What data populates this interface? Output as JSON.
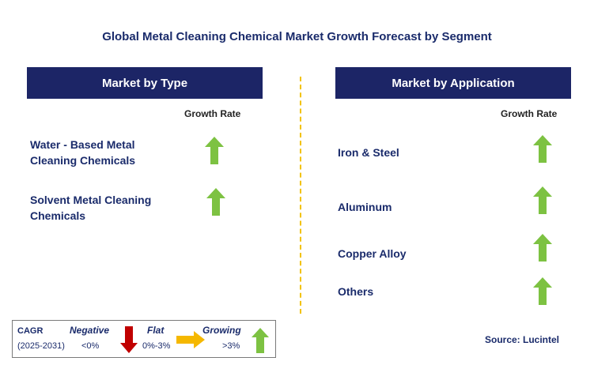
{
  "title": "Global Metal Cleaning Chemical Market Growth Forecast by Segment",
  "left_panel": {
    "header": "Market by Type",
    "growth_rate_label": "Growth Rate",
    "items": [
      {
        "line1": "Water - Based Metal",
        "line2": "Cleaning Chemicals",
        "trend": "growing"
      },
      {
        "line1": "Solvent Metal Cleaning",
        "line2": "Chemicals",
        "trend": "growing"
      }
    ]
  },
  "right_panel": {
    "header": "Market by Application",
    "growth_rate_label": "Growth Rate",
    "items": [
      {
        "label": "Iron & Steel",
        "trend": "growing"
      },
      {
        "label": "Aluminum",
        "trend": "growing"
      },
      {
        "label": "Copper Alloy",
        "trend": "growing"
      },
      {
        "label": "Others",
        "trend": "growing"
      }
    ]
  },
  "legend": {
    "cagr_label": "CAGR",
    "period": "(2025-2031)",
    "negative_label": "Negative",
    "negative_range": "<0%",
    "flat_label": "Flat",
    "flat_range": "0%-3%",
    "growing_label": "Growing",
    "growing_range": ">3%"
  },
  "source": "Source: Lucintel",
  "colors": {
    "header_bg": "#1c2566",
    "growing_arrow": "#7dc242",
    "negative_arrow": "#c00000",
    "flat_arrow": "#f5b800",
    "divider": "#f2c200"
  }
}
